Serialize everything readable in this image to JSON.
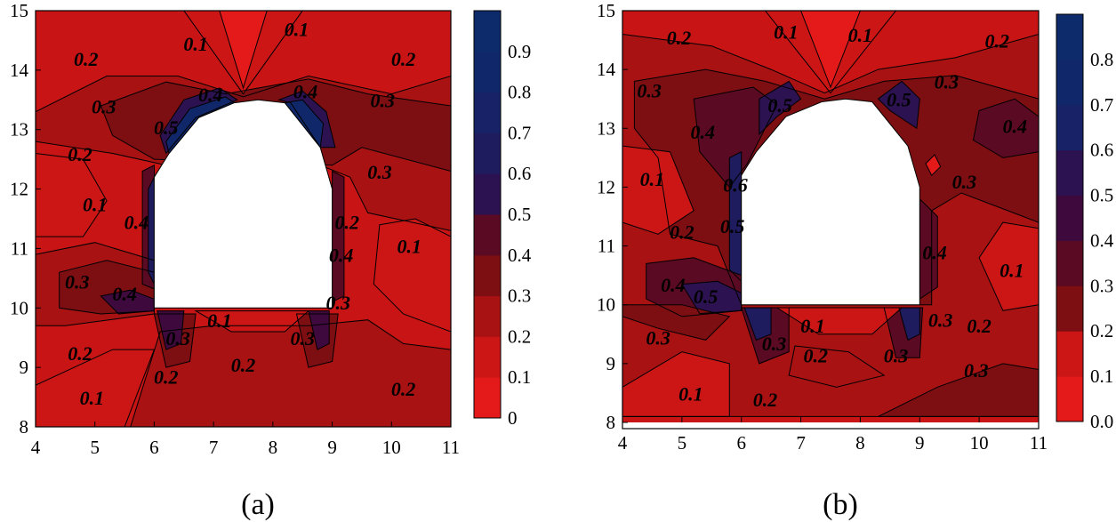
{
  "chart_data": [
    {
      "type": "contour",
      "panel_label": "(a)",
      "xlim": [
        4,
        11
      ],
      "ylim": [
        8,
        15
      ],
      "xticks": [
        "4",
        "5",
        "6",
        "7",
        "8",
        "9",
        "10",
        "11"
      ],
      "yticks": [
        "8",
        "9",
        "10",
        "11",
        "12",
        "13",
        "14",
        "15"
      ],
      "colorbar": {
        "range": [
          0,
          1
        ],
        "ticks": [
          "0",
          "0.1",
          "0.2",
          "0.3",
          "0.4",
          "0.5",
          "0.6",
          "0.7",
          "0.8",
          "0.9"
        ],
        "levels": [
          0,
          0.1,
          0.2,
          0.3,
          0.4,
          0.5,
          0.6,
          0.7,
          0.8,
          0.9,
          1.0
        ]
      },
      "tunnel_outline": [
        [
          6,
          10
        ],
        [
          9,
          10
        ],
        [
          9,
          12
        ],
        [
          8.8,
          12.7
        ],
        [
          8.2,
          13.45
        ],
        [
          7.75,
          13.5
        ],
        [
          7.35,
          13.45
        ],
        [
          6.75,
          13.2
        ],
        [
          6.25,
          12.6
        ],
        [
          6,
          12.2
        ]
      ],
      "contour_labels": [
        {
          "x": 6.7,
          "y": 14.4,
          "text": "0.1"
        },
        {
          "x": 8.4,
          "y": 14.65,
          "text": "0.1"
        },
        {
          "x": 4.85,
          "y": 14.15,
          "text": "0.2"
        },
        {
          "x": 10.2,
          "y": 14.15,
          "text": "0.2"
        },
        {
          "x": 5.15,
          "y": 13.35,
          "text": "0.3"
        },
        {
          "x": 9.85,
          "y": 13.45,
          "text": "0.3"
        },
        {
          "x": 9.8,
          "y": 12.25,
          "text": "0.3"
        },
        {
          "x": 6.95,
          "y": 13.55,
          "text": "0.4"
        },
        {
          "x": 8.55,
          "y": 13.6,
          "text": "0.4"
        },
        {
          "x": 6.2,
          "y": 13.0,
          "text": "0.5"
        },
        {
          "x": 4.75,
          "y": 12.55,
          "text": "0.2"
        },
        {
          "x": 5.0,
          "y": 11.7,
          "text": "0.1"
        },
        {
          "x": 5.7,
          "y": 11.4,
          "text": "0.4"
        },
        {
          "x": 9.25,
          "y": 11.4,
          "text": "0.2"
        },
        {
          "x": 9.15,
          "y": 10.85,
          "text": "0.4"
        },
        {
          "x": 9.1,
          "y": 10.05,
          "text": "0.3"
        },
        {
          "x": 10.3,
          "y": 11.0,
          "text": "0.1"
        },
        {
          "x": 4.7,
          "y": 10.4,
          "text": "0.3"
        },
        {
          "x": 5.5,
          "y": 10.2,
          "text": "0.4"
        },
        {
          "x": 7.1,
          "y": 9.75,
          "text": "0.1"
        },
        {
          "x": 6.4,
          "y": 9.45,
          "text": "0.3"
        },
        {
          "x": 8.5,
          "y": 9.45,
          "text": "0.3"
        },
        {
          "x": 4.75,
          "y": 9.2,
          "text": "0.2"
        },
        {
          "x": 7.5,
          "y": 9.0,
          "text": "0.2"
        },
        {
          "x": 6.2,
          "y": 8.8,
          "text": "0.2"
        },
        {
          "x": 10.2,
          "y": 8.6,
          "text": "0.2"
        },
        {
          "x": 4.95,
          "y": 8.45,
          "text": "0.1"
        }
      ]
    },
    {
      "type": "contour",
      "panel_label": "(b)",
      "xlim": [
        4,
        11
      ],
      "ylim": [
        8,
        15
      ],
      "xticks": [
        "4",
        "5",
        "6",
        "7",
        "8",
        "9",
        "10",
        "11"
      ],
      "yticks": [
        "8",
        "9",
        "10",
        "11",
        "12",
        "13",
        "14",
        "15"
      ],
      "colorbar": {
        "range": [
          0,
          0.9
        ],
        "ticks": [
          "0.0",
          "0.1",
          "0.2",
          "0.3",
          "0.4",
          "0.5",
          "0.6",
          "0.7",
          "0.8"
        ],
        "levels": [
          0,
          0.1,
          0.2,
          0.3,
          0.4,
          0.5,
          0.6,
          0.7,
          0.8,
          0.9
        ]
      },
      "tunnel_outline": [
        [
          6,
          10
        ],
        [
          9,
          10
        ],
        [
          9,
          12
        ],
        [
          8.8,
          12.7
        ],
        [
          8.2,
          13.45
        ],
        [
          7.75,
          13.5
        ],
        [
          7.35,
          13.45
        ],
        [
          6.75,
          13.2
        ],
        [
          6.25,
          12.6
        ],
        [
          6,
          12.2
        ]
      ],
      "contour_labels": [
        {
          "x": 6.75,
          "y": 14.6,
          "text": "0.1"
        },
        {
          "x": 8.0,
          "y": 14.55,
          "text": "0.1"
        },
        {
          "x": 4.95,
          "y": 14.5,
          "text": "0.2"
        },
        {
          "x": 10.3,
          "y": 14.45,
          "text": "0.2"
        },
        {
          "x": 4.45,
          "y": 13.6,
          "text": "0.3"
        },
        {
          "x": 9.45,
          "y": 13.75,
          "text": "0.3"
        },
        {
          "x": 9.75,
          "y": 12.05,
          "text": "0.3"
        },
        {
          "x": 10.6,
          "y": 13.0,
          "text": "0.4"
        },
        {
          "x": 5.35,
          "y": 12.9,
          "text": "0.4"
        },
        {
          "x": 6.65,
          "y": 13.35,
          "text": "0.5"
        },
        {
          "x": 8.65,
          "y": 13.45,
          "text": "0.5"
        },
        {
          "x": 4.5,
          "y": 12.1,
          "text": "0.1"
        },
        {
          "x": 5.9,
          "y": 12.0,
          "text": "0.6"
        },
        {
          "x": 5.85,
          "y": 11.3,
          "text": "0.5"
        },
        {
          "x": 5.0,
          "y": 11.2,
          "text": "0.2"
        },
        {
          "x": 9.25,
          "y": 10.85,
          "text": "0.4"
        },
        {
          "x": 10.55,
          "y": 10.55,
          "text": "0.1"
        },
        {
          "x": 4.85,
          "y": 10.3,
          "text": "0.4"
        },
        {
          "x": 5.4,
          "y": 10.1,
          "text": "0.5"
        },
        {
          "x": 4.6,
          "y": 9.4,
          "text": "0.3"
        },
        {
          "x": 7.2,
          "y": 9.6,
          "text": "0.1"
        },
        {
          "x": 9.35,
          "y": 9.7,
          "text": "0.3"
        },
        {
          "x": 10.0,
          "y": 9.6,
          "text": "0.2"
        },
        {
          "x": 6.55,
          "y": 9.3,
          "text": "0.3"
        },
        {
          "x": 8.6,
          "y": 9.1,
          "text": "0.3"
        },
        {
          "x": 7.25,
          "y": 9.1,
          "text": "0.2"
        },
        {
          "x": 9.95,
          "y": 8.85,
          "text": "0.3"
        },
        {
          "x": 5.15,
          "y": 8.45,
          "text": "0.1"
        },
        {
          "x": 6.4,
          "y": 8.35,
          "text": "0.2"
        }
      ]
    }
  ]
}
